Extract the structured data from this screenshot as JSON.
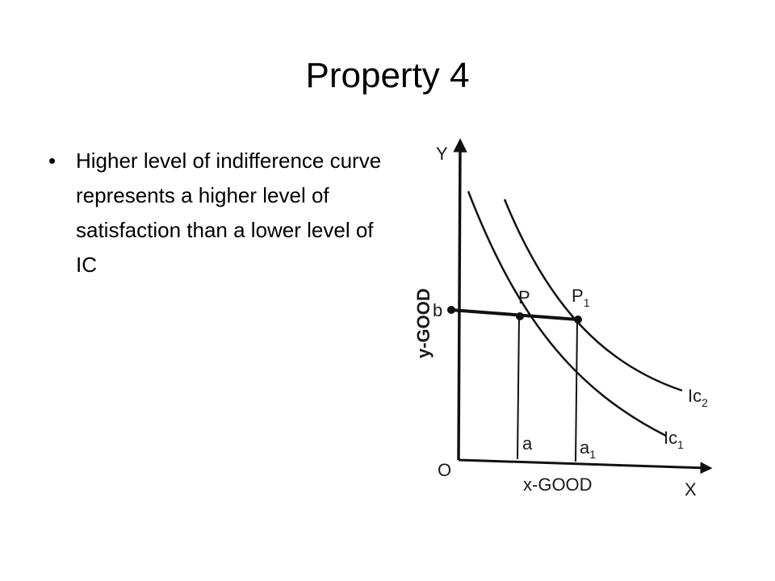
{
  "slide": {
    "title": "Property 4",
    "bullets": [
      "Higher level of indifference curve represents a higher level of satisfaction than a lower level of IC"
    ]
  },
  "diagram": {
    "y_axis_letter": "Y",
    "x_axis_letter": "X",
    "origin": "O",
    "y_axis_label": "y-GOOD",
    "x_axis_label": "x-GOOD",
    "point_b": "b",
    "point_p": "P",
    "point_p1": "P",
    "point_p1_sub": "1",
    "point_a": "a",
    "point_a1": "a",
    "point_a1_sub": "1",
    "curve_low": "Ic",
    "curve_low_sub": "1",
    "curve_high": "Ic",
    "curve_high_sub": "2"
  }
}
